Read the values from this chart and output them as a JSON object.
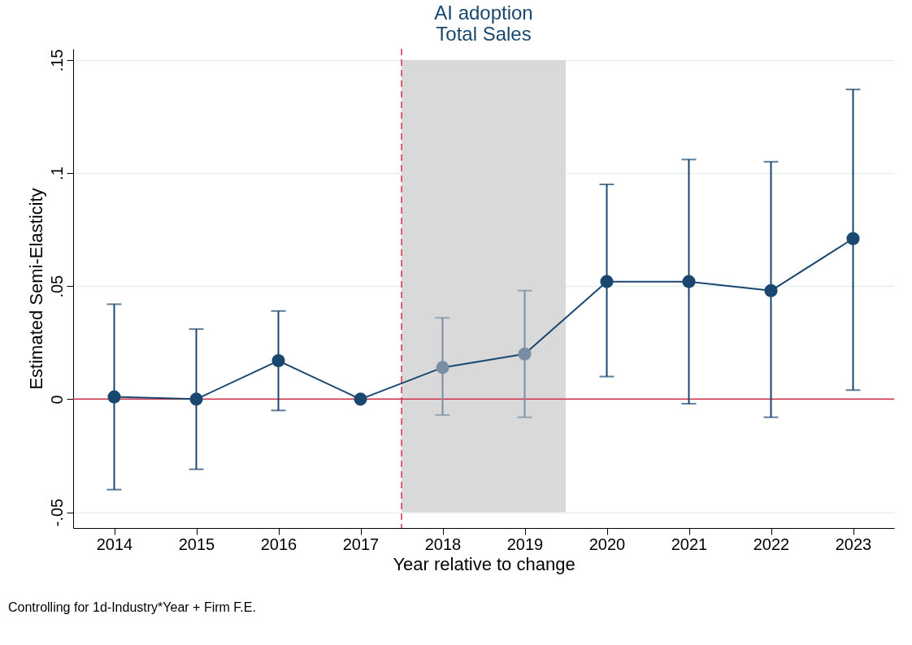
{
  "chart_data": {
    "type": "line",
    "title": "AI adoption",
    "subtitle": "Total Sales",
    "xlabel": "Year relative to change",
    "ylabel": "Estimated Semi-Elasticity",
    "annotations": [
      "Controlling for 1d-Industry*Year + Firm F.E."
    ],
    "x": [
      2014,
      2015,
      2016,
      2017,
      2018,
      2019,
      2020,
      2021,
      2022,
      2023
    ],
    "series": [
      {
        "color": "#1a476f",
        "values": [
          0.001,
          0.0,
          0.017,
          0.0,
          0.014,
          0.02,
          0.052,
          0.052,
          0.048,
          0.071
        ],
        "colors": [
          "#1a476f",
          "#1a476f",
          "#1a476f",
          "#1a476f",
          "#7a8ea3",
          "#7a8ea3",
          "#1a476f",
          "#1a476f",
          "#1a476f",
          "#1a476f"
        ],
        "errors": [
          [
            -0.04,
            0.042
          ],
          [
            -0.031,
            0.031
          ],
          [
            -0.005,
            0.039
          ],
          null,
          [
            -0.007,
            0.036
          ],
          [
            -0.008,
            0.048
          ],
          [
            0.01,
            0.095
          ],
          [
            -0.002,
            0.106
          ],
          [
            -0.008,
            0.105
          ],
          [
            0.004,
            0.137
          ]
        ]
      }
    ],
    "marker": "circle",
    "xlim": [
      2013.5,
      2023.5
    ],
    "xticks": [
      2014,
      2015,
      2016,
      2017,
      2018,
      2019,
      2020,
      2021,
      2022,
      2023
    ],
    "ylim": [
      -0.057,
      0.155
    ],
    "yticks": [
      {
        "value": -0.05,
        "label": "-.05"
      },
      {
        "value": 0,
        "label": "0"
      },
      {
        "value": 0.05,
        "label": ".05"
      },
      {
        "value": 0.1,
        "label": ".1"
      },
      {
        "value": 0.15,
        "label": ".15"
      }
    ],
    "grid": "y",
    "ref_lines": [
      {
        "axis": "x",
        "value": 2017.5,
        "color": "#d0344b",
        "line_style": "dashed"
      },
      {
        "axis": "y",
        "value": 0,
        "color": "#d0344b",
        "line_style": "solid"
      }
    ],
    "bands": [
      {
        "axis": "x",
        "from": 2017.5,
        "to": 2019.5,
        "color": "#d9d9d9"
      }
    ]
  }
}
